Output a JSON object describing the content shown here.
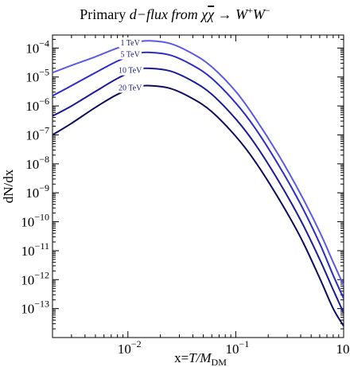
{
  "chart_data": {
    "type": "line",
    "title_parts": {
      "prefix": "Primary ",
      "particle": "d",
      "suffix": "−flux from χ",
      "chi_bar": "χ",
      "arrow": " → W",
      "w_plus": "+",
      "w": "W",
      "w_minus": "−"
    },
    "xlabel": {
      "main": "x=",
      "var": "T/M",
      "sub": "DM"
    },
    "ylabel": "dN/dx",
    "xscale": "log",
    "yscale": "log",
    "xlim": [
      0.002,
      1.0
    ],
    "ylim_exp": [
      -14,
      -3.55
    ],
    "x_ticks": [
      {
        "value": 0.01,
        "base": "10",
        "exp": "−2"
      },
      {
        "value": 0.1,
        "base": "10",
        "exp": "−1"
      },
      {
        "value": 1,
        "base": "10",
        "exp": "0"
      }
    ],
    "y_ticks": [
      {
        "value": -13,
        "base": "10",
        "exp": "−13"
      },
      {
        "value": -12,
        "base": "10",
        "exp": "−12"
      },
      {
        "value": -11,
        "base": "10",
        "exp": "−11"
      },
      {
        "value": -10,
        "base": "10",
        "exp": "−10"
      },
      {
        "value": -9,
        "base": "10",
        "exp": "−9"
      },
      {
        "value": -8,
        "base": "10",
        "exp": "−8"
      },
      {
        "value": -7,
        "base": "10",
        "exp": "−7"
      },
      {
        "value": -6,
        "base": "10",
        "exp": "−6"
      },
      {
        "value": -5,
        "base": "10",
        "exp": "−5"
      },
      {
        "value": -4,
        "base": "10",
        "exp": "−4"
      }
    ],
    "series": [
      {
        "name": "1 TeV",
        "color": "#5a5ae6",
        "x": [
          0.002,
          0.003,
          0.005,
          0.008,
          0.012,
          0.016,
          0.025,
          0.04,
          0.06,
          0.1,
          0.15,
          0.25,
          0.4,
          0.6,
          0.8,
          1.0
        ],
        "y_exp": [
          -4.85,
          -4.6,
          -4.3,
          -4.0,
          -3.8,
          -3.75,
          -3.85,
          -4.2,
          -4.65,
          -5.5,
          -6.4,
          -7.7,
          -9.05,
          -10.35,
          -11.4,
          -12.2
        ]
      },
      {
        "name": "5 TeV",
        "color": "#2c2cc8",
        "x": [
          0.002,
          0.003,
          0.005,
          0.008,
          0.012,
          0.016,
          0.025,
          0.04,
          0.06,
          0.1,
          0.15,
          0.25,
          0.4,
          0.6,
          0.8,
          1.0
        ],
        "y_exp": [
          -5.65,
          -5.3,
          -4.85,
          -4.45,
          -4.2,
          -4.15,
          -4.25,
          -4.6,
          -5.05,
          -5.9,
          -6.75,
          -8.05,
          -9.4,
          -10.75,
          -11.85,
          -12.65
        ]
      },
      {
        "name": "10 TeV",
        "color": "#1a1a9a",
        "x": [
          0.002,
          0.003,
          0.005,
          0.008,
          0.012,
          0.016,
          0.025,
          0.04,
          0.06,
          0.1,
          0.15,
          0.25,
          0.4,
          0.6,
          0.8,
          1.0
        ],
        "y_exp": [
          -6.35,
          -6.0,
          -5.5,
          -5.05,
          -4.75,
          -4.7,
          -4.8,
          -5.15,
          -5.6,
          -6.45,
          -7.3,
          -8.6,
          -9.95,
          -11.3,
          -12.35,
          -13.15
        ]
      },
      {
        "name": "20 TeV",
        "color": "#0c0c60",
        "x": [
          0.002,
          0.003,
          0.005,
          0.008,
          0.012,
          0.016,
          0.025,
          0.04,
          0.06,
          0.1,
          0.15,
          0.25,
          0.4,
          0.6,
          0.8,
          1.0
        ],
        "y_exp": [
          -7.0,
          -6.6,
          -6.05,
          -5.6,
          -5.35,
          -5.3,
          -5.4,
          -5.75,
          -6.2,
          -7.05,
          -7.9,
          -9.2,
          -10.55,
          -11.95,
          -13.0,
          -13.6
        ]
      }
    ],
    "grid": false,
    "legend": "inline labels on curves"
  }
}
